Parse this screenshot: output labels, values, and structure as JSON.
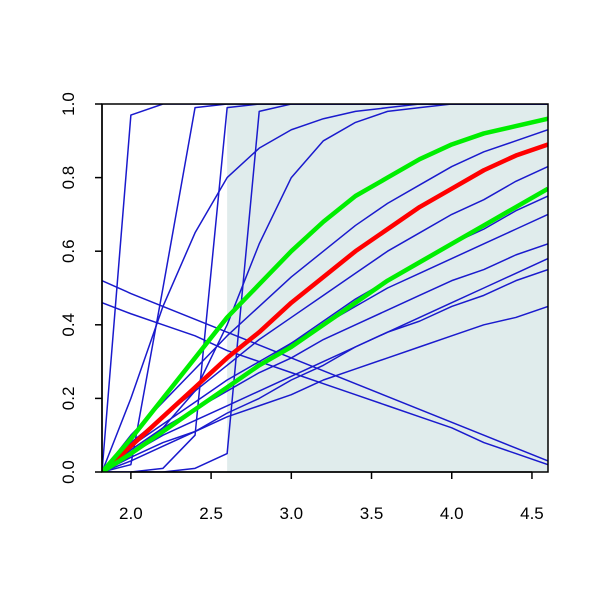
{
  "chart_data": {
    "type": "line",
    "x": [
      1.82,
      2.0,
      2.2,
      2.4,
      2.6,
      2.8,
      3.0,
      3.2,
      3.4,
      3.6,
      3.8,
      4.0,
      4.2,
      4.4,
      4.6
    ],
    "xlim": [
      1.82,
      4.6
    ],
    "ylim": [
      0,
      1
    ],
    "xticks": [
      {
        "value": 2.0,
        "label": "2.0"
      },
      {
        "value": 2.5,
        "label": "2.5"
      },
      {
        "value": 3.0,
        "label": "3.0"
      },
      {
        "value": 3.5,
        "label": "3.5"
      },
      {
        "value": 4.0,
        "label": "4.0"
      },
      {
        "value": 4.5,
        "label": "4.5"
      }
    ],
    "yticks": [
      {
        "value": 0,
        "label": "0.0"
      },
      {
        "value": 0.2,
        "label": "0.2"
      },
      {
        "value": 0.4,
        "label": "0.4"
      },
      {
        "value": 0.6,
        "label": "0.6"
      },
      {
        "value": 0.8,
        "label": "0.8"
      },
      {
        "value": 1,
        "label": "1.0"
      }
    ],
    "shaded_region": {
      "xlim": [
        2.6,
        4.6
      ],
      "color": "#e0ecec"
    },
    "series": [
      {
        "color": "#1a1acd",
        "width": 1.5,
        "values": [
          0,
          0.97,
          1,
          1,
          1,
          1,
          1,
          1,
          1,
          1,
          1,
          1,
          1,
          1,
          1
        ]
      },
      {
        "color": "#1a1acd",
        "width": 1.5,
        "values": [
          0,
          0.02,
          0.5,
          0.99,
          1,
          1,
          1,
          1,
          1,
          1,
          1,
          1,
          1,
          1,
          1
        ]
      },
      {
        "color": "#1a1acd",
        "width": 1.5,
        "values": [
          0,
          0,
          0.01,
          0.1,
          0.99,
          1,
          1,
          1,
          1,
          1,
          1,
          1,
          1,
          1,
          1
        ]
      },
      {
        "color": "#1a1acd",
        "width": 1.5,
        "values": [
          0,
          0,
          0,
          0.01,
          0.05,
          0.98,
          1,
          1,
          1,
          1,
          1,
          1,
          1,
          1,
          1
        ]
      },
      {
        "color": "#1a1acd",
        "width": 1.5,
        "values": [
          0,
          0.2,
          0.45,
          0.65,
          0.8,
          0.88,
          0.93,
          0.96,
          0.98,
          0.99,
          1,
          1,
          1,
          1,
          1
        ]
      },
      {
        "color": "#1a1acd",
        "width": 1.5,
        "values": [
          0.52,
          0.485,
          0.45,
          0.415,
          0.38,
          0.345,
          0.31,
          0.275,
          0.24,
          0.205,
          0.17,
          0.135,
          0.1,
          0.065,
          0.03
        ]
      },
      {
        "color": "#1a1acd",
        "width": 1.5,
        "values": [
          0.46,
          0.43,
          0.4,
          0.37,
          0.33,
          0.3,
          0.27,
          0.24,
          0.21,
          0.18,
          0.15,
          0.12,
          0.08,
          0.05,
          0.02
        ]
      },
      {
        "color": "#1a1acd",
        "width": 1.5,
        "values": [
          0,
          0.04,
          0.08,
          0.11,
          0.15,
          0.18,
          0.21,
          0.25,
          0.28,
          0.31,
          0.34,
          0.37,
          0.4,
          0.42,
          0.45
        ]
      },
      {
        "color": "#1a1acd",
        "width": 1.5,
        "values": [
          0,
          0.05,
          0.1,
          0.14,
          0.18,
          0.22,
          0.26,
          0.3,
          0.34,
          0.38,
          0.41,
          0.45,
          0.48,
          0.52,
          0.55
        ]
      },
      {
        "color": "#1a1acd",
        "width": 1.5,
        "values": [
          0,
          0.06,
          0.12,
          0.17,
          0.22,
          0.27,
          0.31,
          0.36,
          0.4,
          0.44,
          0.48,
          0.52,
          0.55,
          0.59,
          0.62
        ]
      },
      {
        "color": "#1a1acd",
        "width": 1.5,
        "values": [
          0,
          0.07,
          0.13,
          0.19,
          0.25,
          0.3,
          0.35,
          0.4,
          0.45,
          0.5,
          0.54,
          0.58,
          0.62,
          0.66,
          0.7
        ]
      },
      {
        "color": "#1a1acd",
        "width": 1.5,
        "values": [
          0,
          0.08,
          0.15,
          0.22,
          0.29,
          0.36,
          0.42,
          0.48,
          0.54,
          0.6,
          0.65,
          0.7,
          0.74,
          0.79,
          0.83
        ]
      },
      {
        "color": "#1a1acd",
        "width": 1.5,
        "values": [
          0,
          0.1,
          0.19,
          0.28,
          0.37,
          0.45,
          0.53,
          0.6,
          0.67,
          0.73,
          0.78,
          0.83,
          0.87,
          0.9,
          0.93
        ]
      },
      {
        "color": "#1a1acd",
        "width": 1.5,
        "values": [
          0,
          0.05,
          0.12,
          0.22,
          0.4,
          0.62,
          0.8,
          0.9,
          0.95,
          0.98,
          0.99,
          1,
          1,
          1,
          1
        ]
      },
      {
        "color": "#1a1acd",
        "width": 1.5,
        "values": [
          0,
          0.03,
          0.07,
          0.11,
          0.16,
          0.2,
          0.25,
          0.29,
          0.34,
          0.38,
          0.42,
          0.46,
          0.5,
          0.54,
          0.58
        ]
      },
      {
        "color": "#1a1acd",
        "width": 1.5,
        "values": [
          0,
          0.05,
          0.11,
          0.17,
          0.23,
          0.29,
          0.35,
          0.41,
          0.47,
          0.52,
          0.57,
          0.62,
          0.66,
          0.71,
          0.75
        ]
      },
      {
        "color": "#ff0000",
        "width": 4.5,
        "values": [
          0,
          0.07,
          0.15,
          0.23,
          0.31,
          0.38,
          0.46,
          0.53,
          0.6,
          0.66,
          0.72,
          0.77,
          0.82,
          0.86,
          0.89
        ]
      },
      {
        "color": "#00ee00",
        "width": 4.5,
        "values": [
          0,
          0.09,
          0.2,
          0.31,
          0.42,
          0.51,
          0.6,
          0.68,
          0.75,
          0.8,
          0.85,
          0.89,
          0.92,
          0.94,
          0.96
        ]
      },
      {
        "color": "#00ee00",
        "width": 4.5,
        "values": [
          0,
          0.05,
          0.11,
          0.17,
          0.23,
          0.29,
          0.34,
          0.4,
          0.46,
          0.52,
          0.57,
          0.62,
          0.67,
          0.72,
          0.77
        ]
      }
    ]
  }
}
